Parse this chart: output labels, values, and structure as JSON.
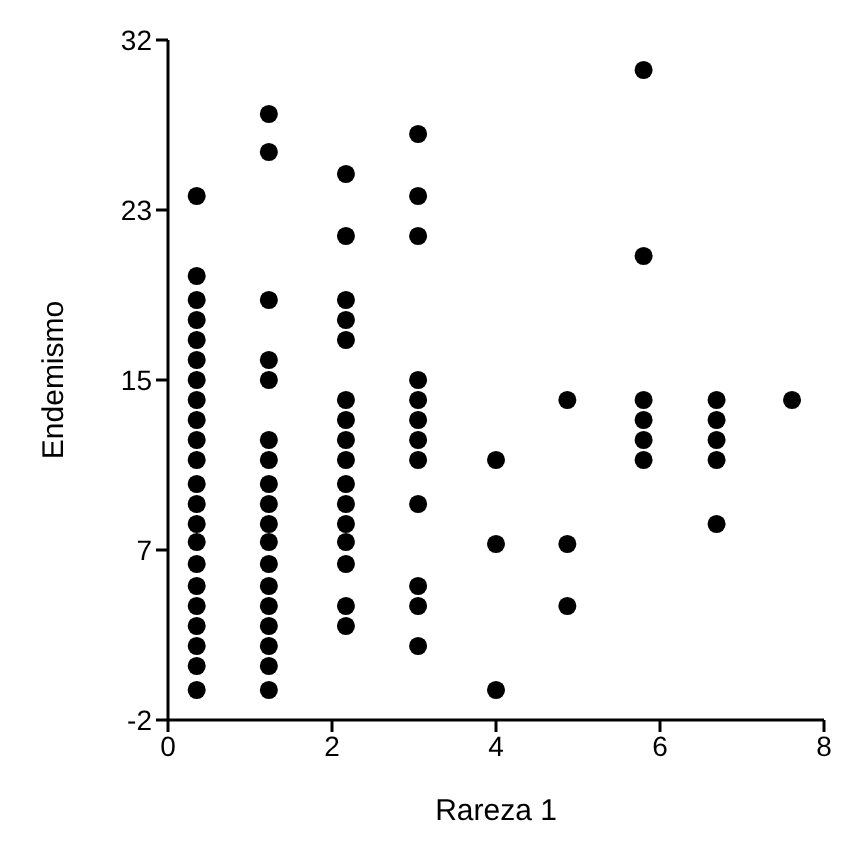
{
  "chart_data": {
    "type": "scatter",
    "xlabel": "Rareza 1",
    "ylabel": "Endemismo",
    "x": [
      0.35,
      0.35,
      0.35,
      0.35,
      0.35,
      0.35,
      0.35,
      0.35,
      0.35,
      0.35,
      0.35,
      0.35,
      0.35,
      0.35,
      0.35,
      0.35,
      0.35,
      0.35,
      0.35,
      0.35,
      0.35,
      0.35,
      1.23,
      1.23,
      1.23,
      1.23,
      1.23,
      1.23,
      1.23,
      1.23,
      1.23,
      1.23,
      1.23,
      1.23,
      1.23,
      1.23,
      1.23,
      1.23,
      1.23,
      1.23,
      2.17,
      2.17,
      2.17,
      2.17,
      2.17,
      2.17,
      2.17,
      2.17,
      2.17,
      2.17,
      2.17,
      2.17,
      2.17,
      2.17,
      2.17,
      2.17,
      3.05,
      3.05,
      3.05,
      3.05,
      3.05,
      3.05,
      3.05,
      3.05,
      3.05,
      3.05,
      3.05,
      3.05,
      4.0,
      4.0,
      4.0,
      4.87,
      4.87,
      4.87,
      5.8,
      5.8,
      5.8,
      5.8,
      5.8,
      5.8,
      6.69,
      6.69,
      6.69,
      6.69,
      6.69,
      7.61
    ],
    "values": [
      24.2,
      20.2,
      19,
      18,
      17,
      16,
      15,
      14,
      13,
      12,
      11,
      9.8,
      8.8,
      7.8,
      6.9,
      5.8,
      4.7,
      3.7,
      2.7,
      1.7,
      0.7,
      -0.5,
      28.3,
      26.4,
      19,
      16,
      15,
      12,
      11,
      9.8,
      8.8,
      7.8,
      6.9,
      5.8,
      4.7,
      3.7,
      2.7,
      1.7,
      0.7,
      -0.5,
      25.3,
      22.2,
      19,
      18,
      17,
      14,
      13,
      12,
      11,
      9.8,
      8.8,
      7.8,
      6.9,
      5.8,
      3.7,
      2.7,
      27.3,
      24.2,
      22.2,
      15,
      14,
      13,
      12,
      11,
      8.8,
      4.7,
      3.7,
      1.7,
      11,
      6.8,
      -0.5,
      14,
      6.8,
      3.7,
      30.5,
      21.2,
      14,
      13,
      12,
      11,
      14,
      13,
      12,
      11,
      7.8,
      14
    ],
    "color": "#000000",
    "marker": "circle",
    "grid": false,
    "xlim": [
      0,
      8
    ],
    "xticks": [
      0,
      2,
      4,
      6,
      8
    ],
    "ylim": [
      -2,
      32
    ],
    "yticks": [
      -2,
      {
        "value": 6.5,
        "label": "7"
      },
      15,
      {
        "value": 23.5,
        "label": "23"
      },
      32
    ]
  }
}
